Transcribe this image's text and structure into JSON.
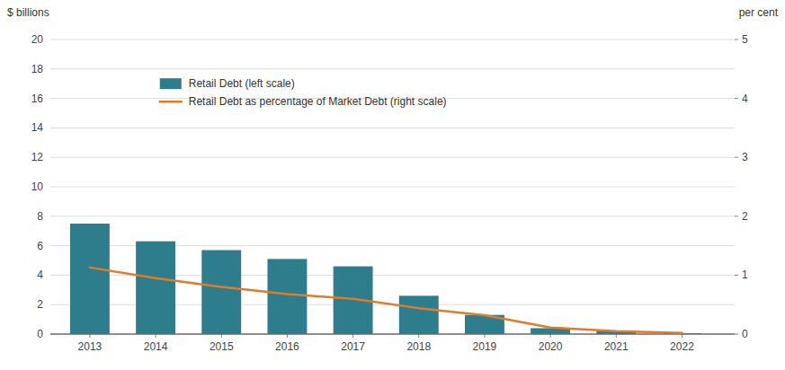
{
  "chart_data": {
    "type": "bar",
    "x": [
      2013,
      2014,
      2015,
      2016,
      2017,
      2018,
      2019,
      2020,
      2021,
      2022
    ],
    "xlim": [
      2012.4,
      2022.8
    ],
    "xticks": [
      2013,
      2014,
      2015,
      2016,
      2017,
      2018,
      2019,
      2020,
      2021,
      2022
    ],
    "ylabel": "$ billions",
    "y2label": "per cent",
    "ylim": [
      0,
      20
    ],
    "yticks": [
      0,
      2,
      4,
      6,
      8,
      10,
      12,
      14,
      16,
      18,
      20
    ],
    "y2lim": [
      0,
      5
    ],
    "y2ticks": [
      0,
      1,
      2,
      3,
      4,
      5
    ],
    "grid": true,
    "legend": "upper left",
    "series": [
      {
        "name": "Retail Debt (left scale)",
        "type": "bar",
        "color": "#2E7D8C",
        "values": [
          7.5,
          6.3,
          5.7,
          5.1,
          4.6,
          2.6,
          1.3,
          0.4,
          0.2,
          0.05
        ]
      },
      {
        "name": "Retail Debt as percentage of Market Debt (right scale)",
        "type": "line",
        "color": "#E07B2A",
        "axis": "y2",
        "values": [
          1.13,
          0.95,
          0.8,
          0.68,
          0.6,
          0.44,
          0.32,
          0.11,
          0.05,
          0.02
        ]
      }
    ]
  }
}
